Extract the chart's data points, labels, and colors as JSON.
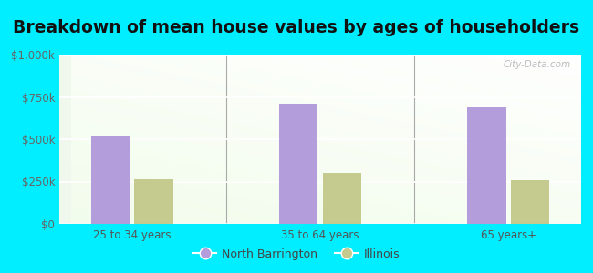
{
  "title": "Breakdown of mean house values by ages of householders",
  "categories": [
    "25 to 34 years",
    "35 to 64 years",
    "65 years+"
  ],
  "north_barrington": [
    520000,
    710000,
    690000
  ],
  "illinois": [
    265000,
    300000,
    260000
  ],
  "bar_color_nb": "#b39ddb",
  "bar_color_il": "#c5ca8e",
  "background_outer": "#00eeff",
  "ylim": [
    0,
    1000000
  ],
  "yticks": [
    0,
    250000,
    500000,
    750000,
    1000000
  ],
  "ytick_labels": [
    "$0",
    "$250k",
    "$500k",
    "$750k",
    "$1,000k"
  ],
  "legend_labels": [
    "North Barrington",
    "Illinois"
  ],
  "title_fontsize": 13.5,
  "tick_fontsize": 8.5,
  "legend_fontsize": 9,
  "bar_width": 0.32,
  "watermark": "City-Data.com"
}
